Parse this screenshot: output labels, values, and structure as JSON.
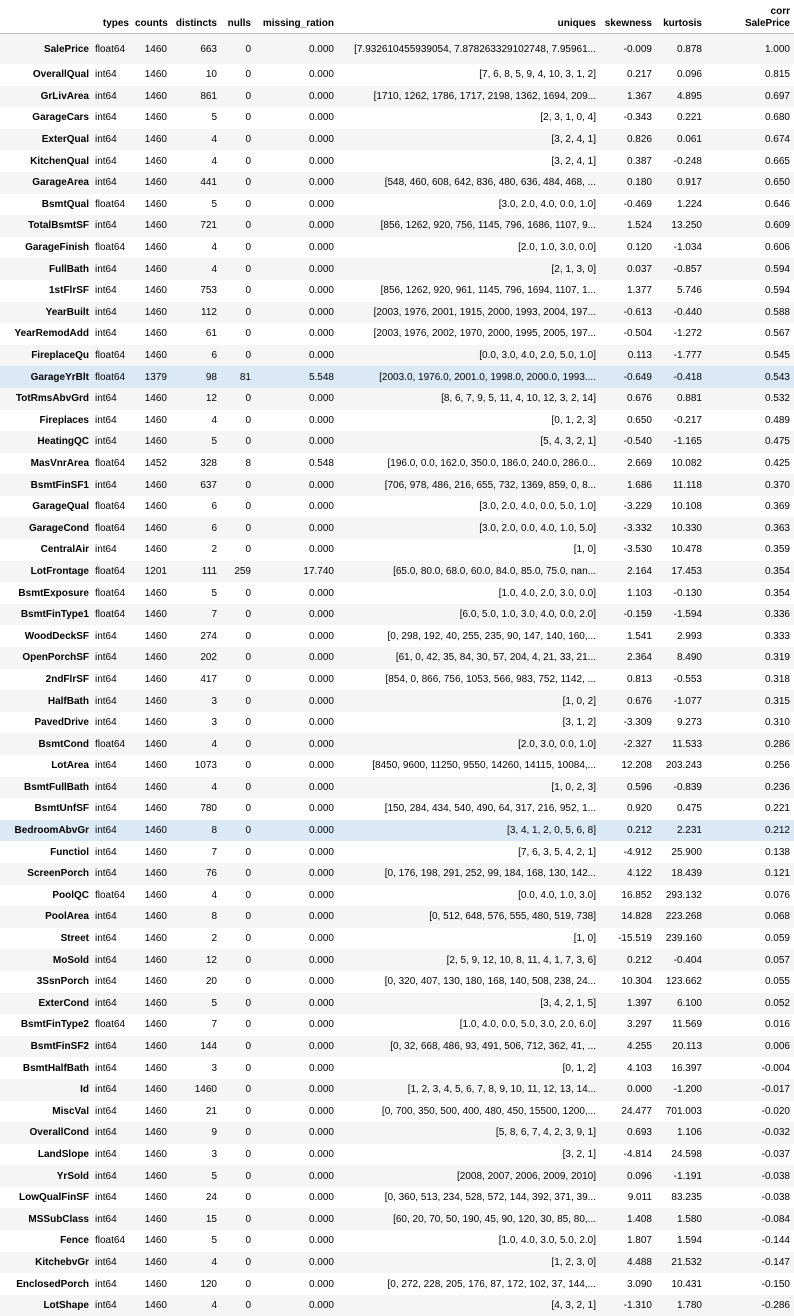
{
  "headers": [
    "",
    "types",
    "counts",
    "distincts",
    "nulls",
    "missing_ration",
    "uniques",
    "skewness",
    "kurtosis",
    "corr SalePrice"
  ],
  "header_corr_line1": "corr",
  "header_corr_line2": "SalePrice",
  "highlight_rows": [
    "GarageYrBlt",
    "BedroomAbvGr"
  ],
  "rows": [
    [
      "SalePrice",
      "float64",
      "1460",
      "663",
      "0",
      "0.000",
      "[7.932610455939054, 7.878263329102748, 7.95961...",
      "-0.009",
      "0.878",
      "1.000"
    ],
    [
      "OverallQual",
      "int64",
      "1460",
      "10",
      "0",
      "0.000",
      "[7, 6, 8, 5, 9, 4, 10, 3, 1, 2]",
      "0.217",
      "0.096",
      "0.815"
    ],
    [
      "GrLivArea",
      "int64",
      "1460",
      "861",
      "0",
      "0.000",
      "[1710, 1262, 1786, 1717, 2198, 1362, 1694, 209...",
      "1.367",
      "4.895",
      "0.697"
    ],
    [
      "GarageCars",
      "int64",
      "1460",
      "5",
      "0",
      "0.000",
      "[2, 3, 1, 0, 4]",
      "-0.343",
      "0.221",
      "0.680"
    ],
    [
      "ExterQual",
      "int64",
      "1460",
      "4",
      "0",
      "0.000",
      "[3, 2, 4, 1]",
      "0.826",
      "0.061",
      "0.674"
    ],
    [
      "KitchenQual",
      "int64",
      "1460",
      "4",
      "0",
      "0.000",
      "[3, 2, 4, 1]",
      "0.387",
      "-0.248",
      "0.665"
    ],
    [
      "GarageArea",
      "int64",
      "1460",
      "441",
      "0",
      "0.000",
      "[548, 460, 608, 642, 836, 480, 636, 484, 468, ...",
      "0.180",
      "0.917",
      "0.650"
    ],
    [
      "BsmtQual",
      "float64",
      "1460",
      "5",
      "0",
      "0.000",
      "[3.0, 2.0, 4.0, 0.0, 1.0]",
      "-0.469",
      "1.224",
      "0.646"
    ],
    [
      "TotalBsmtSF",
      "int64",
      "1460",
      "721",
      "0",
      "0.000",
      "[856, 1262, 920, 756, 1145, 796, 1686, 1107, 9...",
      "1.524",
      "13.250",
      "0.609"
    ],
    [
      "GarageFinish",
      "float64",
      "1460",
      "4",
      "0",
      "0.000",
      "[2.0, 1.0, 3.0, 0.0]",
      "0.120",
      "-1.034",
      "0.606"
    ],
    [
      "FullBath",
      "int64",
      "1460",
      "4",
      "0",
      "0.000",
      "[2, 1, 3, 0]",
      "0.037",
      "-0.857",
      "0.594"
    ],
    [
      "1stFlrSF",
      "int64",
      "1460",
      "753",
      "0",
      "0.000",
      "[856, 1262, 920, 961, 1145, 796, 1694, 1107, 1...",
      "1.377",
      "5.746",
      "0.594"
    ],
    [
      "YearBuilt",
      "int64",
      "1460",
      "112",
      "0",
      "0.000",
      "[2003, 1976, 2001, 1915, 2000, 1993, 2004, 197...",
      "-0.613",
      "-0.440",
      "0.588"
    ],
    [
      "YearRemodAdd",
      "int64",
      "1460",
      "61",
      "0",
      "0.000",
      "[2003, 1976, 2002, 1970, 2000, 1995, 2005, 197...",
      "-0.504",
      "-1.272",
      "0.567"
    ],
    [
      "FireplaceQu",
      "float64",
      "1460",
      "6",
      "0",
      "0.000",
      "[0.0, 3.0, 4.0, 2.0, 5.0, 1.0]",
      "0.113",
      "-1.777",
      "0.545"
    ],
    [
      "GarageYrBlt",
      "float64",
      "1379",
      "98",
      "81",
      "5.548",
      "[2003.0, 1976.0, 2001.0, 1998.0, 2000.0, 1993....",
      "-0.649",
      "-0.418",
      "0.543"
    ],
    [
      "TotRmsAbvGrd",
      "int64",
      "1460",
      "12",
      "0",
      "0.000",
      "[8, 6, 7, 9, 5, 11, 4, 10, 12, 3, 2, 14]",
      "0.676",
      "0.881",
      "0.532"
    ],
    [
      "Fireplaces",
      "int64",
      "1460",
      "4",
      "0",
      "0.000",
      "[0, 1, 2, 3]",
      "0.650",
      "-0.217",
      "0.489"
    ],
    [
      "HeatingQC",
      "int64",
      "1460",
      "5",
      "0",
      "0.000",
      "[5, 4, 3, 2, 1]",
      "-0.540",
      "-1.165",
      "0.475"
    ],
    [
      "MasVnrArea",
      "float64",
      "1452",
      "328",
      "8",
      "0.548",
      "[196.0, 0.0, 162.0, 350.0, 186.0, 240.0, 286.0...",
      "2.669",
      "10.082",
      "0.425"
    ],
    [
      "BsmtFinSF1",
      "int64",
      "1460",
      "637",
      "0",
      "0.000",
      "[706, 978, 486, 216, 655, 732, 1369, 859, 0, 8...",
      "1.686",
      "11.118",
      "0.370"
    ],
    [
      "GarageQual",
      "float64",
      "1460",
      "6",
      "0",
      "0.000",
      "[3.0, 2.0, 4.0, 0.0, 5.0, 1.0]",
      "-3.229",
      "10.108",
      "0.369"
    ],
    [
      "GarageCond",
      "float64",
      "1460",
      "6",
      "0",
      "0.000",
      "[3.0, 2.0, 0.0, 4.0, 1.0, 5.0]",
      "-3.332",
      "10.330",
      "0.363"
    ],
    [
      "CentralAir",
      "int64",
      "1460",
      "2",
      "0",
      "0.000",
      "[1, 0]",
      "-3.530",
      "10.478",
      "0.359"
    ],
    [
      "LotFrontage",
      "float64",
      "1201",
      "111",
      "259",
      "17.740",
      "[65.0, 80.0, 68.0, 60.0, 84.0, 85.0, 75.0, nan...",
      "2.164",
      "17.453",
      "0.354"
    ],
    [
      "BsmtExposure",
      "float64",
      "1460",
      "5",
      "0",
      "0.000",
      "[1.0, 4.0, 2.0, 3.0, 0.0]",
      "1.103",
      "-0.130",
      "0.354"
    ],
    [
      "BsmtFinType1",
      "float64",
      "1460",
      "7",
      "0",
      "0.000",
      "[6.0, 5.0, 1.0, 3.0, 4.0, 0.0, 2.0]",
      "-0.159",
      "-1.594",
      "0.336"
    ],
    [
      "WoodDeckSF",
      "int64",
      "1460",
      "274",
      "0",
      "0.000",
      "[0, 298, 192, 40, 255, 235, 90, 147, 140, 160,...",
      "1.541",
      "2.993",
      "0.333"
    ],
    [
      "OpenPorchSF",
      "int64",
      "1460",
      "202",
      "0",
      "0.000",
      "[61, 0, 42, 35, 84, 30, 57, 204, 4, 21, 33, 21...",
      "2.364",
      "8.490",
      "0.319"
    ],
    [
      "2ndFlrSF",
      "int64",
      "1460",
      "417",
      "0",
      "0.000",
      "[854, 0, 866, 756, 1053, 566, 983, 752, 1142, ...",
      "0.813",
      "-0.553",
      "0.318"
    ],
    [
      "HalfBath",
      "int64",
      "1460",
      "3",
      "0",
      "0.000",
      "[1, 0, 2]",
      "0.676",
      "-1.077",
      "0.315"
    ],
    [
      "PavedDrive",
      "int64",
      "1460",
      "3",
      "0",
      "0.000",
      "[3, 1, 2]",
      "-3.309",
      "9.273",
      "0.310"
    ],
    [
      "BsmtCond",
      "float64",
      "1460",
      "4",
      "0",
      "0.000",
      "[2.0, 3.0, 0.0, 1.0]",
      "-2.327",
      "11.533",
      "0.286"
    ],
    [
      "LotArea",
      "int64",
      "1460",
      "1073",
      "0",
      "0.000",
      "[8450, 9600, 11250, 9550, 14260, 14115, 10084,...",
      "12.208",
      "203.243",
      "0.256"
    ],
    [
      "BsmtFullBath",
      "int64",
      "1460",
      "4",
      "0",
      "0.000",
      "[1, 0, 2, 3]",
      "0.596",
      "-0.839",
      "0.236"
    ],
    [
      "BsmtUnfSF",
      "int64",
      "1460",
      "780",
      "0",
      "0.000",
      "[150, 284, 434, 540, 490, 64, 317, 216, 952, 1...",
      "0.920",
      "0.475",
      "0.221"
    ],
    [
      "BedroomAbvGr",
      "int64",
      "1460",
      "8",
      "0",
      "0.000",
      "[3, 4, 1, 2, 0, 5, 6, 8]",
      "0.212",
      "2.231",
      "0.212"
    ],
    [
      "Functiol",
      "int64",
      "1460",
      "7",
      "0",
      "0.000",
      "[7, 6, 3, 5, 4, 2, 1]",
      "-4.912",
      "25.900",
      "0.138"
    ],
    [
      "ScreenPorch",
      "int64",
      "1460",
      "76",
      "0",
      "0.000",
      "[0, 176, 198, 291, 252, 99, 184, 168, 130, 142...",
      "4.122",
      "18.439",
      "0.121"
    ],
    [
      "PoolQC",
      "float64",
      "1460",
      "4",
      "0",
      "0.000",
      "[0.0, 4.0, 1.0, 3.0]",
      "16.852",
      "293.132",
      "0.076"
    ],
    [
      "PoolArea",
      "int64",
      "1460",
      "8",
      "0",
      "0.000",
      "[0, 512, 648, 576, 555, 480, 519, 738]",
      "14.828",
      "223.268",
      "0.068"
    ],
    [
      "Street",
      "int64",
      "1460",
      "2",
      "0",
      "0.000",
      "[1, 0]",
      "-15.519",
      "239.160",
      "0.059"
    ],
    [
      "MoSold",
      "int64",
      "1460",
      "12",
      "0",
      "0.000",
      "[2, 5, 9, 12, 10, 8, 11, 4, 1, 7, 3, 6]",
      "0.212",
      "-0.404",
      "0.057"
    ],
    [
      "3SsnPorch",
      "int64",
      "1460",
      "20",
      "0",
      "0.000",
      "[0, 320, 407, 130, 180, 168, 140, 508, 238, 24...",
      "10.304",
      "123.662",
      "0.055"
    ],
    [
      "ExterCond",
      "int64",
      "1460",
      "5",
      "0",
      "0.000",
      "[3, 4, 2, 1, 5]",
      "1.397",
      "6.100",
      "0.052"
    ],
    [
      "BsmtFinType2",
      "float64",
      "1460",
      "7",
      "0",
      "0.000",
      "[1.0, 4.0, 0.0, 5.0, 3.0, 2.0, 6.0]",
      "3.297",
      "11.569",
      "0.016"
    ],
    [
      "BsmtFinSF2",
      "int64",
      "1460",
      "144",
      "0",
      "0.000",
      "[0, 32, 668, 486, 93, 491, 506, 712, 362, 41, ...",
      "4.255",
      "20.113",
      "0.006"
    ],
    [
      "BsmtHalfBath",
      "int64",
      "1460",
      "3",
      "0",
      "0.000",
      "[0, 1, 2]",
      "4.103",
      "16.397",
      "-0.004"
    ],
    [
      "Id",
      "int64",
      "1460",
      "1460",
      "0",
      "0.000",
      "[1, 2, 3, 4, 5, 6, 7, 8, 9, 10, 11, 12, 13, 14...",
      "0.000",
      "-1.200",
      "-0.017"
    ],
    [
      "MiscVal",
      "int64",
      "1460",
      "21",
      "0",
      "0.000",
      "[0, 700, 350, 500, 400, 480, 450, 15500, 1200,...",
      "24.477",
      "701.003",
      "-0.020"
    ],
    [
      "OverallCond",
      "int64",
      "1460",
      "9",
      "0",
      "0.000",
      "[5, 8, 6, 7, 4, 2, 3, 9, 1]",
      "0.693",
      "1.106",
      "-0.032"
    ],
    [
      "LandSlope",
      "int64",
      "1460",
      "3",
      "0",
      "0.000",
      "[3, 2, 1]",
      "-4.814",
      "24.598",
      "-0.037"
    ],
    [
      "YrSold",
      "int64",
      "1460",
      "5",
      "0",
      "0.000",
      "[2008, 2007, 2006, 2009, 2010]",
      "0.096",
      "-1.191",
      "-0.038"
    ],
    [
      "LowQualFinSF",
      "int64",
      "1460",
      "24",
      "0",
      "0.000",
      "[0, 360, 513, 234, 528, 572, 144, 392, 371, 39...",
      "9.011",
      "83.235",
      "-0.038"
    ],
    [
      "MSSubClass",
      "int64",
      "1460",
      "15",
      "0",
      "0.000",
      "[60, 20, 70, 50, 190, 45, 90, 120, 30, 85, 80,...",
      "1.408",
      "1.580",
      "-0.084"
    ],
    [
      "Fence",
      "float64",
      "1460",
      "5",
      "0",
      "0.000",
      "[1.0, 4.0, 3.0, 5.0, 2.0]",
      "1.807",
      "1.594",
      "-0.144"
    ],
    [
      "KitchebvGr",
      "int64",
      "1460",
      "4",
      "0",
      "0.000",
      "[1, 2, 3, 0]",
      "4.488",
      "21.532",
      "-0.147"
    ],
    [
      "EnclosedPorch",
      "int64",
      "1460",
      "120",
      "0",
      "0.000",
      "[0, 272, 228, 205, 176, 87, 172, 102, 37, 144,...",
      "3.090",
      "10.431",
      "-0.150"
    ],
    [
      "LotShape",
      "int64",
      "1460",
      "4",
      "0",
      "0.000",
      "[4, 3, 2, 1]",
      "-1.310",
      "1.780",
      "-0.286"
    ]
  ]
}
